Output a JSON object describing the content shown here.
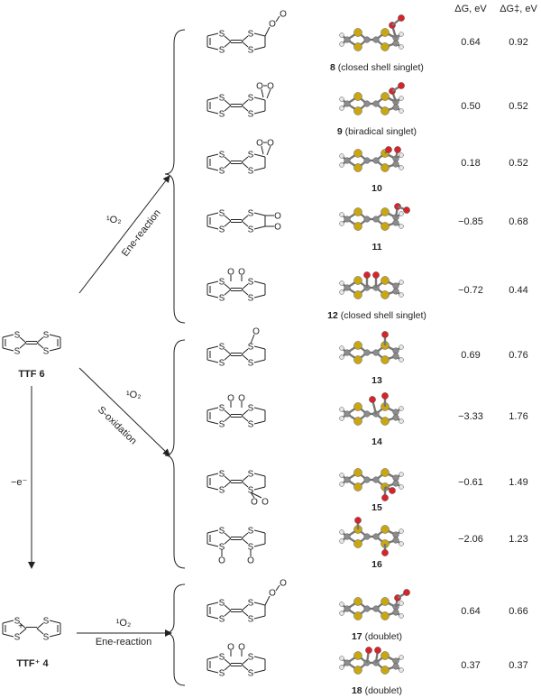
{
  "columns": {
    "dg_header": "ΔG, eV",
    "dgts_header": "ΔG‡, eV"
  },
  "start": {
    "ttf": "TTF 6",
    "ttf_cation": "TTF⁺ 4"
  },
  "arrows": {
    "ene_reagent": "¹O₂",
    "ene_label": "Ene-reaction",
    "soxid_reagent": "¹O₂",
    "soxid_label": "S-oxidation",
    "oxidation_label": "−e⁻",
    "cation_reagent": "¹O₂",
    "cation_label": "Ene-reaction"
  },
  "rows": [
    {
      "id": "8",
      "label": "(closed shell singlet)",
      "dg": "0.64",
      "dgts": "0.92"
    },
    {
      "id": "9",
      "label": "(biradical singlet)",
      "dg": "0.50",
      "dgts": "0.52"
    },
    {
      "id": "10",
      "label": "",
      "dg": "0.18",
      "dgts": "0.52"
    },
    {
      "id": "11",
      "label": "",
      "dg": "−0.85",
      "dgts": "0.68"
    },
    {
      "id": "12",
      "label": "(closed shell singlet)",
      "dg": "−0.72",
      "dgts": "0.44"
    },
    {
      "id": "13",
      "label": "",
      "dg": "0.69",
      "dgts": "0.76"
    },
    {
      "id": "14",
      "label": "",
      "dg": "−3.33",
      "dgts": "1.76"
    },
    {
      "id": "15",
      "label": "",
      "dg": "−0.61",
      "dgts": "1.49"
    },
    {
      "id": "16",
      "label": "",
      "dg": "−2.06",
      "dgts": "1.23"
    },
    {
      "id": "17",
      "label": "(doublet)",
      "dg": "0.64",
      "dgts": "0.66"
    },
    {
      "id": "18",
      "label": "(doublet)",
      "dg": "0.37",
      "dgts": "0.37"
    }
  ],
  "atom_letters": {
    "sulfur": "S",
    "oxygen": "O",
    "charge": "+"
  },
  "colors": {
    "sulfur": "#c9a712",
    "oxygen": "#d8232a",
    "carbon": "#8c8c8c",
    "hydrogen": "#e6e6e6",
    "line": "#222222"
  }
}
